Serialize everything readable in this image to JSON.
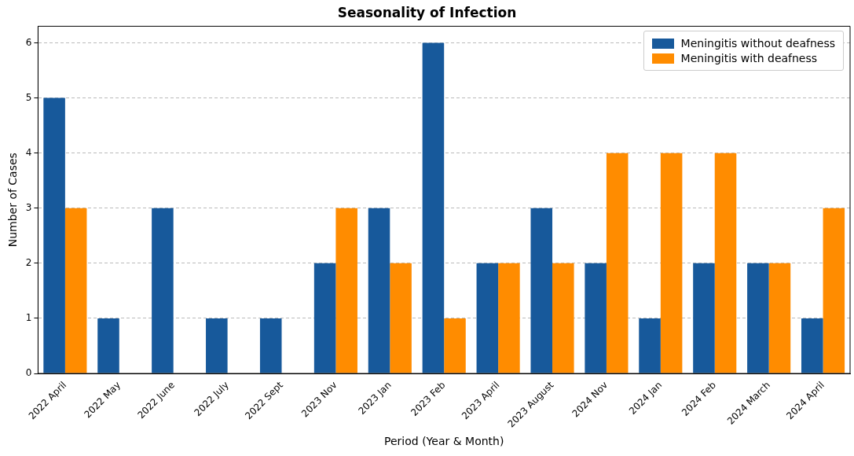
{
  "chart_data": {
    "type": "bar",
    "title": "Seasonality of Infection",
    "xlabel": "Period (Year & Month)",
    "ylabel": "Number of Cases",
    "categories": [
      "2022 April",
      "2022 May",
      "2022 June",
      "2022 July",
      "2022 Sept",
      "2023 Nov",
      "2023 Jan",
      "2023 Feb",
      "2023 April",
      "2023 August",
      "2024 Nov",
      "2024 Jan",
      "2024 Feb",
      "2024 March",
      "2024 April"
    ],
    "series": [
      {
        "name": "Meningitis without deafness",
        "color": "#17599b",
        "values": [
          5,
          1,
          3,
          1,
          1,
          2,
          3,
          6,
          2,
          3,
          2,
          1,
          2,
          2,
          1
        ]
      },
      {
        "name": "Meningitis with deafness",
        "color": "#ff8c00",
        "values": [
          3,
          0,
          0,
          0,
          0,
          3,
          2,
          1,
          2,
          2,
          4,
          4,
          4,
          2,
          3
        ]
      }
    ],
    "ylim": [
      0,
      6.3
    ],
    "yticks": [
      0,
      1,
      2,
      3,
      4,
      5,
      6
    ],
    "grid": "y",
    "legend": "top right"
  }
}
